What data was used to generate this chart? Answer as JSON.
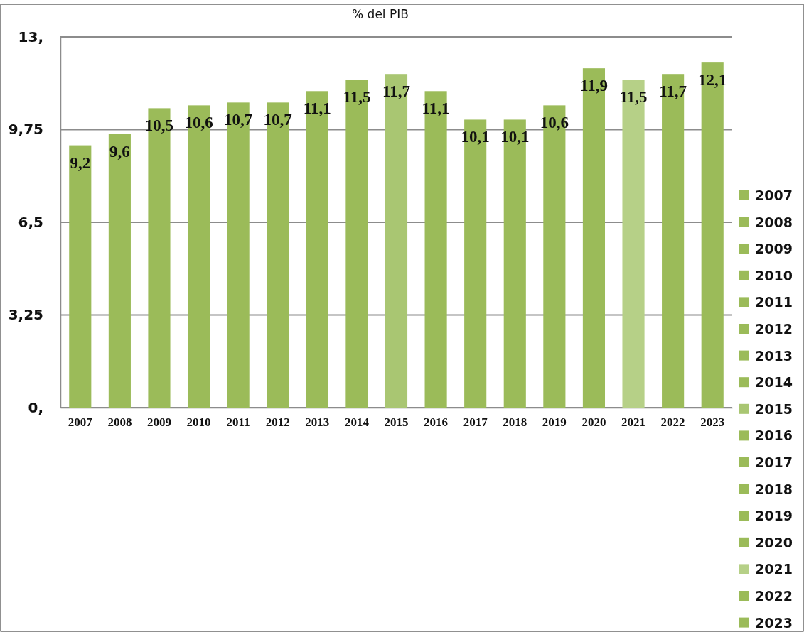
{
  "chart_data": {
    "type": "bar",
    "title": "% del PIB",
    "categories": [
      "2007",
      "2008",
      "2009",
      "2010",
      "2011",
      "2012",
      "2013",
      "2014",
      "2015",
      "2016",
      "2017",
      "2018",
      "2019",
      "2020",
      "2021",
      "2022",
      "2023"
    ],
    "series": [
      {
        "name": "2007",
        "color": "#9bbb59",
        "values": [
          9.2,
          null,
          null,
          null,
          null,
          null,
          null,
          null,
          null,
          null,
          null,
          null,
          null,
          null,
          null,
          null,
          null
        ],
        "value_labels": [
          "9,2",
          null,
          null,
          null,
          null,
          null,
          null,
          null,
          null,
          null,
          null,
          null,
          null,
          null,
          null,
          null,
          null
        ]
      },
      {
        "name": "2008",
        "color": "#9bbb59",
        "values": [
          null,
          9.6,
          null,
          null,
          null,
          null,
          null,
          null,
          null,
          null,
          null,
          null,
          null,
          null,
          null,
          null,
          null
        ],
        "value_labels": [
          null,
          "9,6",
          null,
          null,
          null,
          null,
          null,
          null,
          null,
          null,
          null,
          null,
          null,
          null,
          null,
          null,
          null
        ]
      },
      {
        "name": "2009",
        "color": "#9bbb59",
        "values": [
          null,
          null,
          10.5,
          null,
          null,
          null,
          null,
          null,
          null,
          null,
          null,
          null,
          null,
          null,
          null,
          null,
          null
        ],
        "value_labels": [
          null,
          null,
          "10,5",
          null,
          null,
          null,
          null,
          null,
          null,
          null,
          null,
          null,
          null,
          null,
          null,
          null,
          null
        ]
      },
      {
        "name": "2010",
        "color": "#9bbb59",
        "values": [
          null,
          null,
          null,
          10.6,
          null,
          null,
          null,
          null,
          null,
          null,
          null,
          null,
          null,
          null,
          null,
          null,
          null
        ],
        "value_labels": [
          null,
          null,
          null,
          "10,6",
          null,
          null,
          null,
          null,
          null,
          null,
          null,
          null,
          null,
          null,
          null,
          null,
          null
        ]
      },
      {
        "name": "2011",
        "color": "#9bbb59",
        "values": [
          null,
          null,
          null,
          null,
          10.7,
          null,
          null,
          null,
          null,
          null,
          null,
          null,
          null,
          null,
          null,
          null,
          null
        ],
        "value_labels": [
          null,
          null,
          null,
          null,
          "10,7",
          null,
          null,
          null,
          null,
          null,
          null,
          null,
          null,
          null,
          null,
          null,
          null
        ]
      },
      {
        "name": "2012",
        "color": "#9bbb59",
        "values": [
          null,
          null,
          null,
          null,
          null,
          10.7,
          null,
          null,
          null,
          null,
          null,
          null,
          null,
          null,
          null,
          null,
          null
        ],
        "value_labels": [
          null,
          null,
          null,
          null,
          null,
          "10,7",
          null,
          null,
          null,
          null,
          null,
          null,
          null,
          null,
          null,
          null,
          null
        ]
      },
      {
        "name": "2013",
        "color": "#9bbb59",
        "values": [
          null,
          null,
          null,
          null,
          null,
          null,
          11.1,
          null,
          null,
          null,
          null,
          null,
          null,
          null,
          null,
          null,
          null
        ],
        "value_labels": [
          null,
          null,
          null,
          null,
          null,
          null,
          "11,1",
          null,
          null,
          null,
          null,
          null,
          null,
          null,
          null,
          null,
          null
        ]
      },
      {
        "name": "2014",
        "color": "#9bbb59",
        "values": [
          null,
          null,
          null,
          null,
          null,
          null,
          null,
          11.5,
          null,
          null,
          null,
          null,
          null,
          null,
          null,
          null,
          null
        ],
        "value_labels": [
          null,
          null,
          null,
          null,
          null,
          null,
          null,
          "11,5",
          null,
          null,
          null,
          null,
          null,
          null,
          null,
          null,
          null
        ]
      },
      {
        "name": "2015",
        "color": "#a9c672",
        "values": [
          null,
          null,
          null,
          null,
          null,
          null,
          null,
          null,
          11.7,
          null,
          null,
          null,
          null,
          null,
          null,
          null,
          null
        ],
        "value_labels": [
          null,
          null,
          null,
          null,
          null,
          null,
          null,
          null,
          "11,7",
          null,
          null,
          null,
          null,
          null,
          null,
          null,
          null
        ]
      },
      {
        "name": "2016",
        "color": "#9bbb59",
        "values": [
          null,
          null,
          null,
          null,
          null,
          null,
          null,
          null,
          null,
          11.1,
          null,
          null,
          null,
          null,
          null,
          null,
          null
        ],
        "value_labels": [
          null,
          null,
          null,
          null,
          null,
          null,
          null,
          null,
          null,
          "11,1",
          null,
          null,
          null,
          null,
          null,
          null,
          null
        ]
      },
      {
        "name": "2017",
        "color": "#9bbb59",
        "values": [
          null,
          null,
          null,
          null,
          null,
          null,
          null,
          null,
          null,
          null,
          10.1,
          null,
          null,
          null,
          null,
          null,
          null
        ],
        "value_labels": [
          null,
          null,
          null,
          null,
          null,
          null,
          null,
          null,
          null,
          null,
          "10,1",
          null,
          null,
          null,
          null,
          null,
          null
        ]
      },
      {
        "name": "2018",
        "color": "#9bbb59",
        "values": [
          null,
          null,
          null,
          null,
          null,
          null,
          null,
          null,
          null,
          null,
          null,
          10.1,
          null,
          null,
          null,
          null,
          null
        ],
        "value_labels": [
          null,
          null,
          null,
          null,
          null,
          null,
          null,
          null,
          null,
          null,
          null,
          "10,1",
          null,
          null,
          null,
          null,
          null
        ]
      },
      {
        "name": "2019",
        "color": "#9bbb59",
        "values": [
          null,
          null,
          null,
          null,
          null,
          null,
          null,
          null,
          null,
          null,
          null,
          null,
          10.6,
          null,
          null,
          null,
          null
        ],
        "value_labels": [
          null,
          null,
          null,
          null,
          null,
          null,
          null,
          null,
          null,
          null,
          null,
          null,
          "10,6",
          null,
          null,
          null,
          null
        ]
      },
      {
        "name": "2020",
        "color": "#9bbb59",
        "values": [
          null,
          null,
          null,
          null,
          null,
          null,
          null,
          null,
          null,
          null,
          null,
          null,
          null,
          11.9,
          null,
          null,
          null
        ],
        "value_labels": [
          null,
          null,
          null,
          null,
          null,
          null,
          null,
          null,
          null,
          null,
          null,
          null,
          null,
          "11,9",
          null,
          null,
          null
        ]
      },
      {
        "name": "2021",
        "color": "#b6d087",
        "values": [
          null,
          null,
          null,
          null,
          null,
          null,
          null,
          null,
          null,
          null,
          null,
          null,
          null,
          null,
          11.5,
          null,
          null
        ],
        "value_labels": [
          null,
          null,
          null,
          null,
          null,
          null,
          null,
          null,
          null,
          null,
          null,
          null,
          null,
          null,
          "11,5",
          null,
          null
        ]
      },
      {
        "name": "2022",
        "color": "#9bbb59",
        "values": [
          null,
          null,
          null,
          null,
          null,
          null,
          null,
          null,
          null,
          null,
          null,
          null,
          null,
          null,
          null,
          11.7,
          null
        ],
        "value_labels": [
          null,
          null,
          null,
          null,
          null,
          null,
          null,
          null,
          null,
          null,
          null,
          null,
          null,
          null,
          null,
          "11,7",
          null
        ]
      },
      {
        "name": "2023",
        "color": "#9bbb59",
        "values": [
          null,
          null,
          null,
          null,
          null,
          null,
          null,
          null,
          null,
          null,
          null,
          null,
          null,
          null,
          null,
          null,
          12.1
        ],
        "value_labels": [
          null,
          null,
          null,
          null,
          null,
          null,
          null,
          null,
          null,
          null,
          null,
          null,
          null,
          null,
          null,
          null,
          "12,1"
        ]
      }
    ],
    "ylim": [
      0,
      13
    ],
    "yticks": [
      {
        "value": 0,
        "label": "0,"
      },
      {
        "value": 3.25,
        "label": "3,25"
      },
      {
        "value": 6.5,
        "label": "6,5"
      },
      {
        "value": 9.75,
        "label": "9,75"
      },
      {
        "value": 13,
        "label": "13,"
      }
    ],
    "grid": "y",
    "legend": "right"
  }
}
